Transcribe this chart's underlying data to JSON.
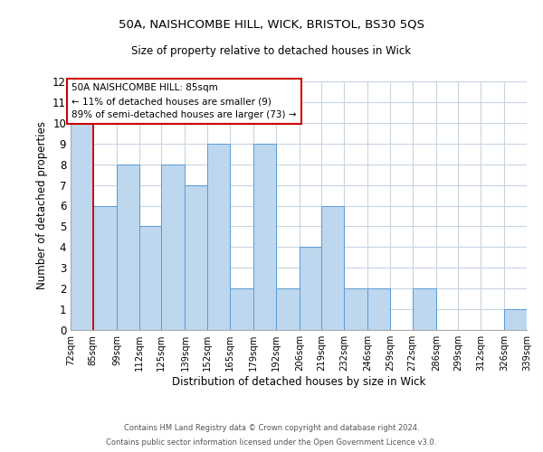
{
  "title_main": "50A, NAISHCOMBE HILL, WICK, BRISTOL, BS30 5QS",
  "title_sub": "Size of property relative to detached houses in Wick",
  "xlabel": "Distribution of detached houses by size in Wick",
  "ylabel": "Number of detached properties",
  "bin_edges": [
    72,
    85,
    99,
    112,
    125,
    139,
    152,
    165,
    179,
    192,
    206,
    219,
    232,
    246,
    259,
    272,
    286,
    299,
    312,
    326,
    339
  ],
  "bar_heights": [
    10,
    6,
    8,
    5,
    8,
    7,
    9,
    2,
    9,
    2,
    4,
    6,
    2,
    2,
    0,
    2,
    0,
    0,
    0,
    1
  ],
  "tick_labels": [
    "72sqm",
    "85sqm",
    "99sqm",
    "112sqm",
    "125sqm",
    "139sqm",
    "152sqm",
    "165sqm",
    "179sqm",
    "192sqm",
    "206sqm",
    "219sqm",
    "232sqm",
    "246sqm",
    "259sqm",
    "272sqm",
    "286sqm",
    "299sqm",
    "312sqm",
    "326sqm",
    "339sqm"
  ],
  "bar_color": "#bdd7ee",
  "bar_edge_color": "#5b9bd5",
  "background_color": "#ffffff",
  "grid_color": "#c8d4e3",
  "red_line_x": 85,
  "ylim": [
    0,
    12
  ],
  "yticks": [
    0,
    1,
    2,
    3,
    4,
    5,
    6,
    7,
    8,
    9,
    10,
    11,
    12
  ],
  "annotation_title": "50A NAISHCOMBE HILL: 85sqm",
  "annotation_line1": "← 11% of detached houses are smaller (9)",
  "annotation_line2": "89% of semi-detached houses are larger (73) →",
  "annotation_box_color": "#ffffff",
  "annotation_box_edge": "#cc0000",
  "footnote1": "Contains HM Land Registry data © Crown copyright and database right 2024.",
  "footnote2": "Contains public sector information licensed under the Open Government Licence v3.0."
}
